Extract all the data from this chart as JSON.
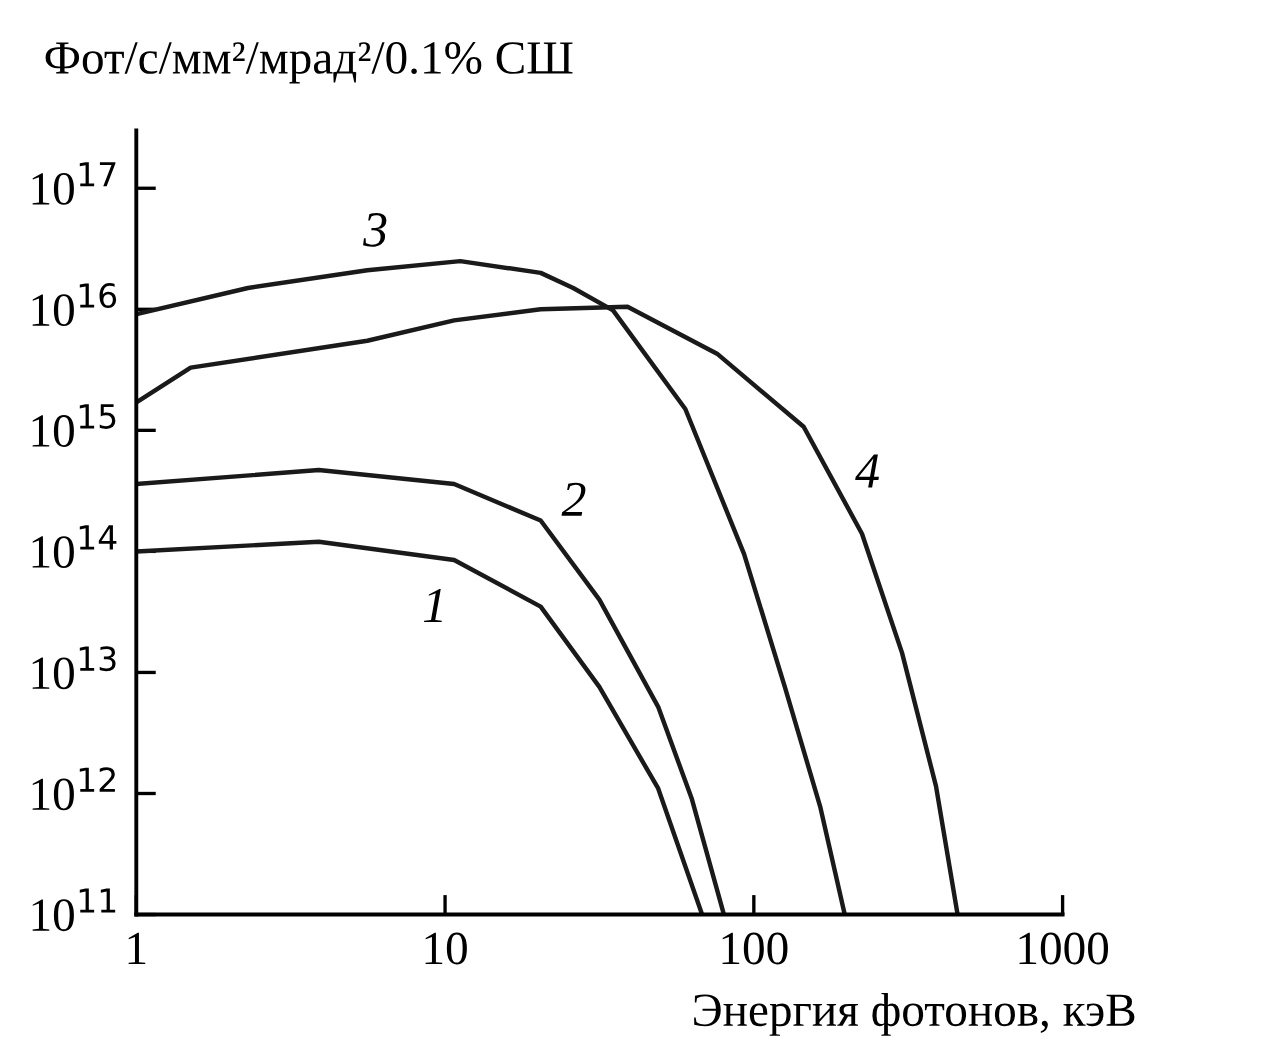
{
  "chart_data": {
    "type": "line",
    "ylabel": "Фот/с/мм²/мрад²/0.1% СШ",
    "xlabel": "Энергия фотонов, кэВ",
    "log": "xy",
    "grid": false,
    "marker": "none",
    "line_style": "solid",
    "xlim": [
      1,
      1000
    ],
    "xticks": [
      1,
      10,
      100,
      1000
    ],
    "ylim": [
      100000000000.0,
      3e+17
    ],
    "yticks": [
      {
        "value": 100000000000.0,
        "label": "10$^{11}$"
      },
      {
        "value": 1000000000000.0,
        "label": "10$^{12}$"
      },
      {
        "value": 10000000000000.0,
        "label": "10$^{13}$"
      },
      {
        "value": 100000000000000.0,
        "label": "10$^{14}$"
      },
      {
        "value": 1000000000000000.0,
        "label": "10$^{15}$"
      },
      {
        "value": 1e+16,
        "label": "10$^{16}$"
      },
      {
        "value": 1e+17,
        "label": "10$^{17}$"
      }
    ],
    "series": [
      {
        "color": "#1a1a1a",
        "x": [
          1,
          3.9,
          10.7,
          20.4,
          31.6,
          49,
          68
        ],
        "values": [
          100000000000000.0,
          120000000000000.0,
          85000000000000.0,
          35000000000000.0,
          7600000000000.0,
          1100000000000.0,
          100000000000.0
        ]
      },
      {
        "color": "#1a1a1a",
        "x": [
          1,
          3.9,
          10.7,
          20.4,
          31.6,
          49,
          63,
          80
        ],
        "values": [
          360000000000000.0,
          470000000000000.0,
          360000000000000.0,
          180000000000000.0,
          40000000000000.0,
          5200000000000.0,
          900000000000.0,
          100000000000.0
        ]
      },
      {
        "color": "#1a1a1a",
        "x": [
          1,
          2.3,
          5.6,
          11.2,
          20.4,
          26,
          35,
          60,
          93,
          126,
          164,
          197
        ],
        "values": [
          9100000000000000.0,
          1.5e+16,
          2.1e+16,
          2.5e+16,
          2e+16,
          1.5e+16,
          9800000000000000.0,
          1500000000000000.0,
          95000000000000.0,
          7600000000000.0,
          780000000000.0,
          100000000000.0
        ]
      },
      {
        "color": "#1a1a1a",
        "x": [
          1,
          1.5,
          5.6,
          10.7,
          20.4,
          39,
          76,
          145,
          224,
          302,
          389,
          457
        ],
        "values": [
          1700000000000000.0,
          3300000000000000.0,
          5500000000000000.0,
          8100000000000000.0,
          1e+16,
          1.05e+16,
          4300000000000000.0,
          1070000000000000.0,
          140000000000000.0,
          14500000000000.0,
          1150000000000.0,
          100000000000.0
        ]
      }
    ],
    "annotations": [
      {
        "text": "1",
        "x": 10.7,
        "y": 85000000000000.0
      },
      {
        "text": "2",
        "x": 20.4,
        "y": 180000000000000.0
      },
      {
        "text": "3",
        "x": 5.6,
        "y": 2.1e+16
      },
      {
        "text": "4",
        "x": 224,
        "y": 140000000000000.0
      }
    ]
  }
}
